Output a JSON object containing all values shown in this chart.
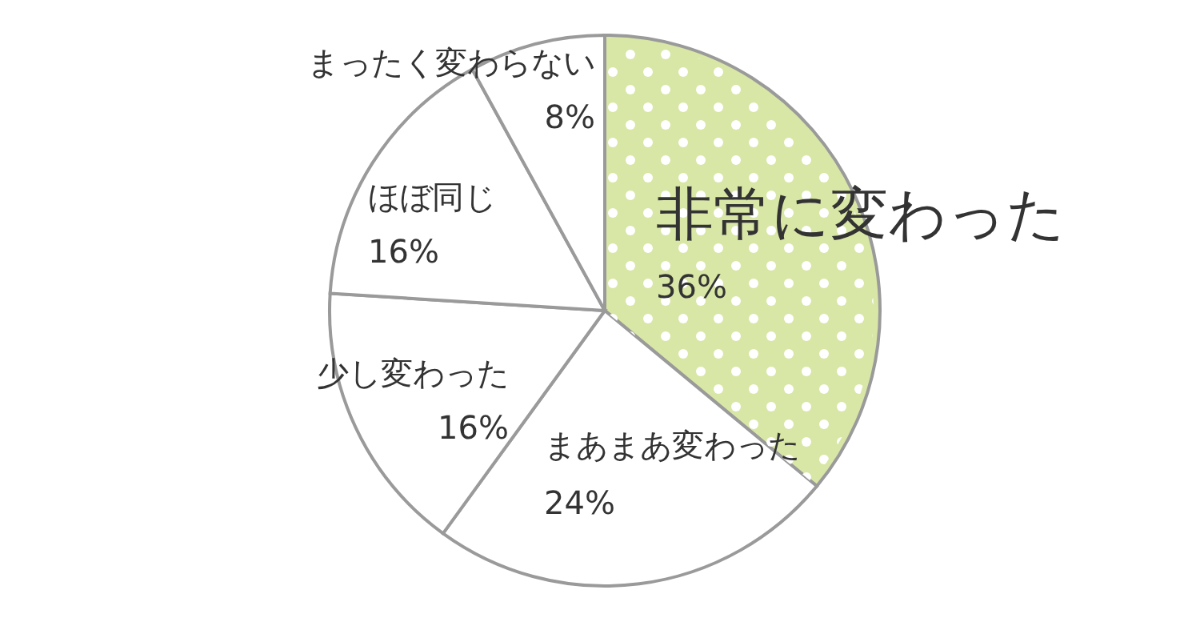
{
  "chart_data": {
    "type": "pie",
    "categories": [
      "非常に変わった",
      "まあまあ変わった",
      "少し変わった",
      "ほぼ同じ",
      "まったく変わらない"
    ],
    "values": [
      36,
      24,
      16,
      16,
      8
    ],
    "colors": [
      "#d8e6a6",
      "#ffffff",
      "#ffffff",
      "#ffffff",
      "#ffffff"
    ],
    "value_labels": [
      "36%",
      "24%",
      "16%",
      "16%",
      "8%"
    ],
    "legend": false
  }
}
